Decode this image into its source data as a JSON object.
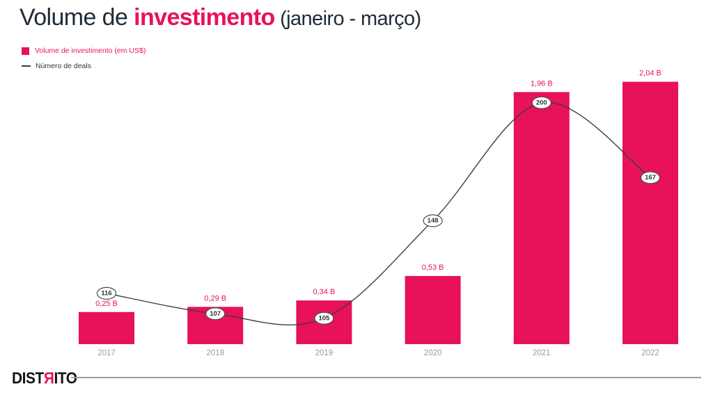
{
  "title": {
    "part1": "Volume de ",
    "part2": "investimento",
    "part3": " (janeiro - março)"
  },
  "legend": {
    "volume_label": "Volume de investimento (em US$)",
    "deals_label": "Número de deals"
  },
  "footer": {
    "logo_part1": "DIST",
    "logo_part2": "Я",
    "logo_part3": "ITO"
  },
  "colors": {
    "accent_pink": "#E8115B",
    "title_dark": "#1E2B37",
    "line_dark": "#3D3D3D",
    "axis_gray": "#9B9B9B",
    "divider_gray": "#9E9E9E"
  },
  "chart_data": {
    "type": "bar",
    "subtype": "bar-and-line-combo",
    "title": "Volume de investimento (janeiro - março)",
    "categories": [
      "2017",
      "2018",
      "2019",
      "2020",
      "2021",
      "2022"
    ],
    "series": [
      {
        "name": "Volume de investimento (em US$)",
        "type": "bar",
        "values": [
          0.25,
          0.29,
          0.34,
          0.53,
          1.96,
          2.04
        ],
        "unit": "US$ billions",
        "value_labels": [
          "0,25 B",
          "0,29 B",
          "0,34 B",
          "0,53 B",
          "1,96 B",
          "2,04 B"
        ],
        "color": "#E8115B"
      },
      {
        "name": "Número de deals",
        "type": "line",
        "values": [
          116,
          107,
          105,
          148,
          200,
          167
        ],
        "color": "#3D3D3D",
        "marker": "white-oval-with-value"
      }
    ],
    "xlabel": "",
    "ylabel": "",
    "legend_position": "top-left",
    "grid": false,
    "axes_visible": false
  }
}
